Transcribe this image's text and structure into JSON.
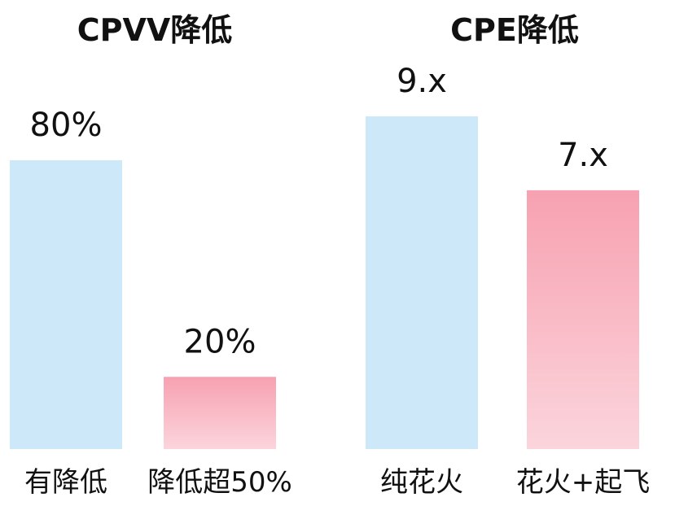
{
  "chart_data": [
    {
      "type": "bar",
      "title": "CPVV降低",
      "categories": [
        "有降低",
        "降低超50%"
      ],
      "values": [
        80,
        20
      ],
      "value_labels": [
        "80%",
        "20%"
      ],
      "colors": [
        "#cde9f9",
        "#f7a1b1"
      ]
    },
    {
      "type": "bar",
      "title": "CPE降低",
      "categories": [
        "纯花火",
        "花火+起飞"
      ],
      "values": [
        9,
        7
      ],
      "value_labels": [
        "9.x",
        "7.x"
      ],
      "colors": [
        "#cde9f9",
        "#f7a1b1"
      ]
    }
  ]
}
